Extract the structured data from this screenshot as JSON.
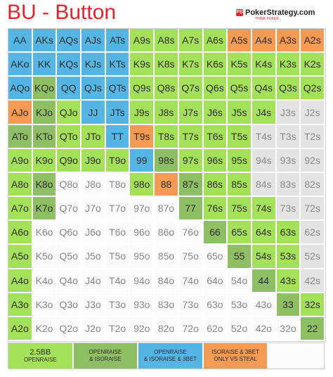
{
  "header": {
    "title": "BU - Button",
    "logo_name": "PokerStrategy.com",
    "logo_tagline": "THINK POKER",
    "logo_badge": "PS"
  },
  "colors": {
    "lightgreen": "#a5e05b",
    "darkgreen": "#8fbf65",
    "blue": "#55b6e6",
    "orange": "#f39a55",
    "white": "#fbfbfb",
    "gray": "#e3e3e3",
    "text": "#2d2d2d",
    "text_gray": "#8a8a8a",
    "title_red": "#e4232b"
  },
  "chart_data": {
    "type": "table",
    "title": "BU - Button",
    "rows": [
      [
        "AA",
        "AKs",
        "AQs",
        "AJs",
        "ATs",
        "A9s",
        "A8s",
        "A7s",
        "A6s",
        "A5s",
        "A4s",
        "A3s",
        "A2s"
      ],
      [
        "AKo",
        "KK",
        "KQs",
        "KJs",
        "KTs",
        "K9s",
        "K8s",
        "K7s",
        "K6s",
        "K5s",
        "K4s",
        "K3s",
        "K2s"
      ],
      [
        "AQo",
        "KQo",
        "QQ",
        "QJs",
        "QTs",
        "Q9s",
        "Q8s",
        "Q7s",
        "Q6s",
        "Q5s",
        "Q4s",
        "Q3s",
        "Q2s"
      ],
      [
        "AJo",
        "KJo",
        "QJo",
        "JJ",
        "JTs",
        "J9s",
        "J8s",
        "J7s",
        "J6s",
        "J5s",
        "J4s",
        "J3s",
        "J2s"
      ],
      [
        "ATo",
        "KTo",
        "QTo",
        "JTo",
        "TT",
        "T9s",
        "T8s",
        "T7s",
        "T6s",
        "T5s",
        "T4s",
        "T3s",
        "T2s"
      ],
      [
        "A9o",
        "K9o",
        "Q9o",
        "J9o",
        "T9o",
        "99",
        "98s",
        "97s",
        "96s",
        "95s",
        "94s",
        "93s",
        "92s"
      ],
      [
        "A8o",
        "K8o",
        "Q8o",
        "J8o",
        "T8o",
        "98o",
        "88",
        "87s",
        "86s",
        "85s",
        "84s",
        "83s",
        "82s"
      ],
      [
        "A7o",
        "K7o",
        "Q7o",
        "J7o",
        "T7o",
        "97o",
        "87o",
        "77",
        "76s",
        "75s",
        "74s",
        "73s",
        "72s"
      ],
      [
        "A6o",
        "K6o",
        "Q6o",
        "J6o",
        "T6o",
        "96o",
        "86o",
        "76o",
        "66",
        "65s",
        "64s",
        "63s",
        "62s"
      ],
      [
        "A5o",
        "K5o",
        "Q5o",
        "J5o",
        "T5o",
        "95o",
        "85o",
        "75o",
        "65o",
        "55",
        "54s",
        "53s",
        "52s"
      ],
      [
        "A4o",
        "K4o",
        "Q4o",
        "J4o",
        "T4o",
        "94o",
        "84o",
        "74o",
        "64o",
        "54o",
        "44",
        "43s",
        "42s"
      ],
      [
        "A3o",
        "K3o",
        "Q3o",
        "J3o",
        "T3o",
        "93o",
        "83o",
        "73o",
        "63o",
        "53o",
        "43o",
        "33",
        "32s"
      ],
      [
        "A2o",
        "K2o",
        "Q2o",
        "J2o",
        "T2o",
        "92o",
        "82o",
        "72o",
        "62o",
        "52o",
        "42o",
        "32o",
        "22"
      ]
    ],
    "actions": [
      [
        "B",
        "B",
        "B",
        "B",
        "B",
        "L",
        "L",
        "L",
        "L",
        "O",
        "O",
        "O",
        "O"
      ],
      [
        "B",
        "B",
        "B",
        "B",
        "B",
        "L",
        "L",
        "L",
        "L",
        "L",
        "L",
        "L",
        "L"
      ],
      [
        "B",
        "D",
        "B",
        "B",
        "B",
        "L",
        "L",
        "L",
        "L",
        "L",
        "L",
        "L",
        "L"
      ],
      [
        "O",
        "D",
        "L",
        "B",
        "B",
        "L",
        "L",
        "L",
        "L",
        "L",
        "L",
        "G",
        "G"
      ],
      [
        "D",
        "D",
        "L",
        "L",
        "B",
        "O",
        "L",
        "L",
        "L",
        "L",
        "G",
        "G",
        "G"
      ],
      [
        "L",
        "L",
        "L",
        "L",
        "L",
        "B",
        "D",
        "L",
        "L",
        "L",
        "G",
        "G",
        "G"
      ],
      [
        "L",
        "D",
        "W",
        "W",
        "W",
        "L",
        "O",
        "D",
        "L",
        "L",
        "G",
        "G",
        "G"
      ],
      [
        "L",
        "D",
        "W",
        "W",
        "W",
        "W",
        "W",
        "D",
        "L",
        "L",
        "L",
        "G",
        "G"
      ],
      [
        "L",
        "W",
        "W",
        "W",
        "W",
        "W",
        "W",
        "W",
        "D",
        "L",
        "L",
        "L",
        "G"
      ],
      [
        "L",
        "W",
        "W",
        "W",
        "W",
        "W",
        "W",
        "W",
        "W",
        "D",
        "L",
        "L",
        "G"
      ],
      [
        "L",
        "W",
        "W",
        "W",
        "W",
        "W",
        "W",
        "W",
        "W",
        "W",
        "D",
        "L",
        "G"
      ],
      [
        "L",
        "W",
        "W",
        "W",
        "W",
        "W",
        "W",
        "W",
        "W",
        "W",
        "W",
        "D",
        "L"
      ],
      [
        "L",
        "W",
        "W",
        "W",
        "W",
        "W",
        "W",
        "W",
        "W",
        "W",
        "W",
        "W",
        "D"
      ]
    ],
    "legend": [
      {
        "key": "L",
        "line1": "2.5BB",
        "line2": "OPENRAISE",
        "color": "#a5e05b"
      },
      {
        "key": "D",
        "line1": "OPENRAISE",
        "line2": "& ISORAISE",
        "color": "#8fbf65"
      },
      {
        "key": "B",
        "line1": "OPENRAISE",
        "line2": "& ISORAISE & 3BET",
        "color": "#55b6e6"
      },
      {
        "key": "O",
        "line1": "ISORAISE & 3BET",
        "line2": "ONLY VS STEAL",
        "color": "#f39a55"
      },
      {
        "key": "W",
        "line1": "",
        "line2": "",
        "color": "#fbfbfb"
      }
    ]
  }
}
